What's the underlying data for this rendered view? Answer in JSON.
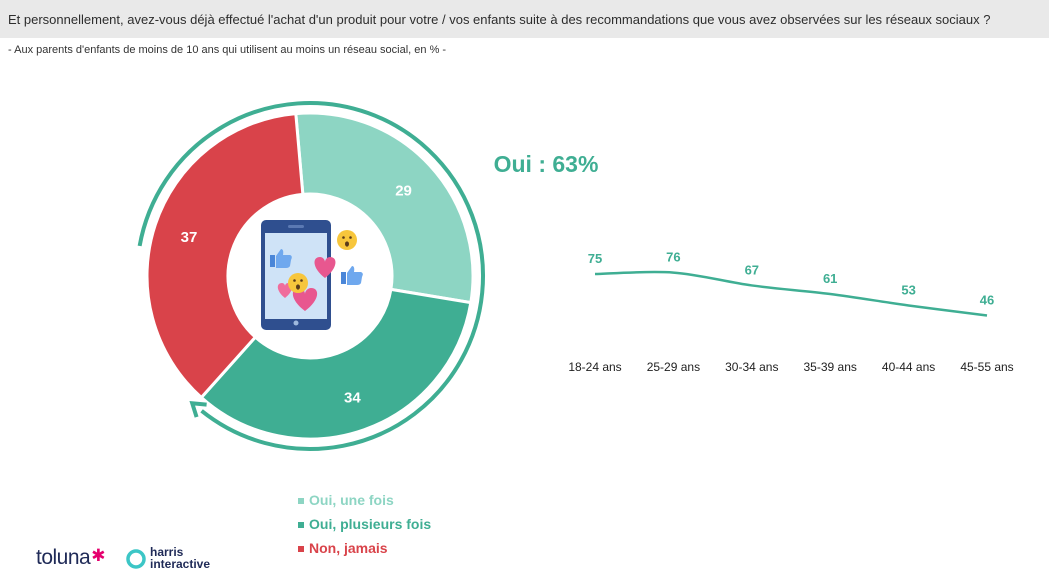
{
  "header": {
    "question": "Et personnellement, avez-vous déjà effectué l'achat d'un produit pour votre / vos enfants suite à des recommandations que vous avez observées sur les réseaux sociaux ?",
    "base": "- Aux parents d'enfants de moins de 10 ans qui utilisent au moins un réseau social, en % -"
  },
  "colors": {
    "light_green": "#8dd5c3",
    "green": "#3fae93",
    "red": "#d9434a",
    "arc": "#3fae93"
  },
  "center_icon": "smartphone-social-reactions-icon",
  "total_label": "Oui : 63%",
  "chart_data": [
    {
      "type": "pie",
      "categories": [
        "Oui, une fois",
        "Oui, plusieurs fois",
        "Non, jamais"
      ],
      "values": [
        29,
        34,
        37
      ],
      "donut": true
    },
    {
      "type": "line",
      "categories": [
        "18-24 ans",
        "25-29 ans",
        "30-34 ans",
        "35-39 ans",
        "40-44 ans",
        "45-55 ans"
      ],
      "values": [
        75,
        76,
        67,
        61,
        53,
        46
      ]
    }
  ],
  "legend": [
    {
      "label": "Oui, une fois",
      "color": "#8dd5c3"
    },
    {
      "label": "Oui, plusieurs fois",
      "color": "#3fae93"
    },
    {
      "label": "Non, jamais",
      "color": "#d9434a"
    }
  ],
  "logos": {
    "toluna": "toluna",
    "harris_line1": "harris",
    "harris_line2": "interactive"
  }
}
